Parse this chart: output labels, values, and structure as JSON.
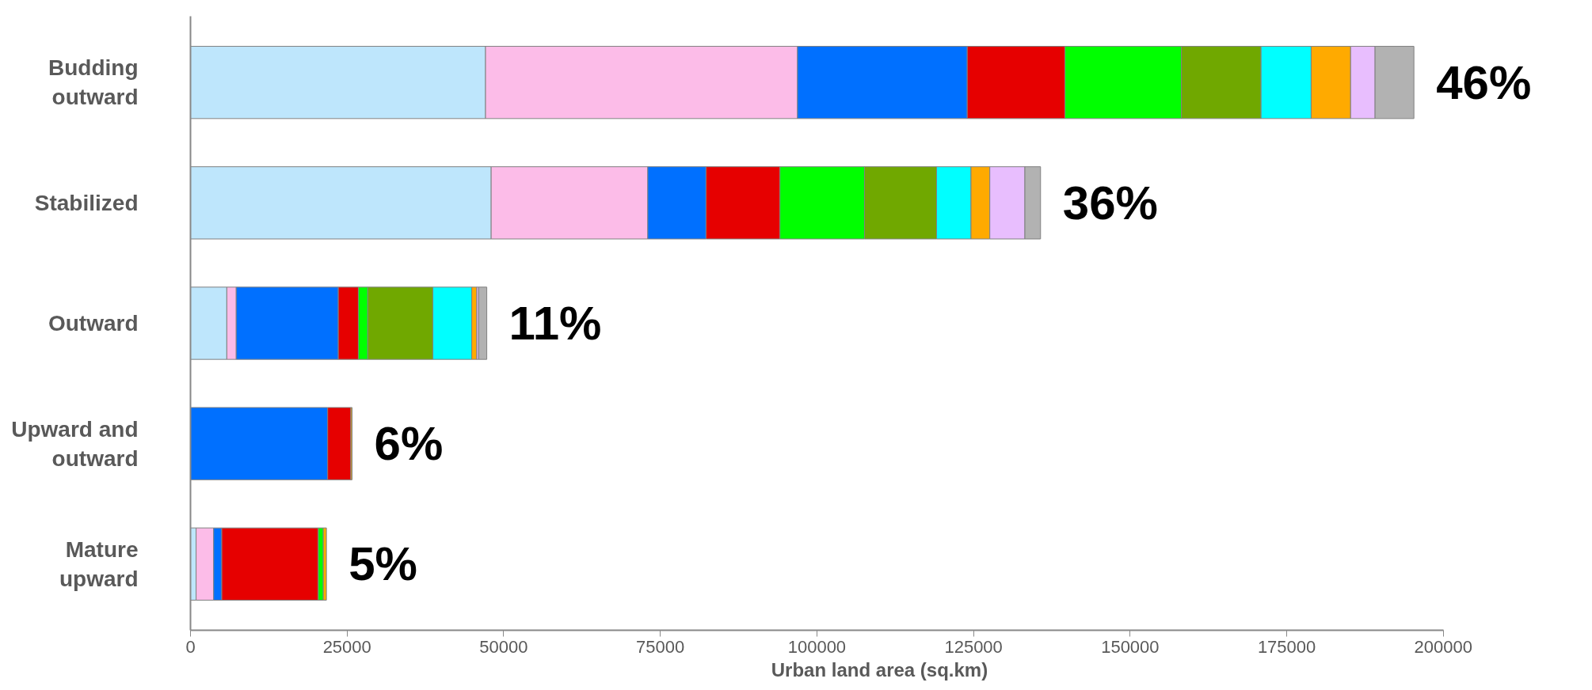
{
  "chart_data": {
    "type": "bar",
    "orientation": "horizontal",
    "stacked": true,
    "xlabel": "Urban land area (sq.km)",
    "categories": [
      "Budding outward",
      "Stabilized",
      "Outward",
      "Upward and outward",
      "Mature upward"
    ],
    "series": [
      {
        "color": "#bee6fc",
        "values": [
          47100,
          48000,
          5800,
          0,
          900
        ]
      },
      {
        "color": "#fcbce8",
        "values": [
          49800,
          25000,
          1500,
          0,
          2800
        ]
      },
      {
        "color": "#0070ff",
        "values": [
          27100,
          9300,
          16300,
          21900,
          1300
        ]
      },
      {
        "color": "#e60000",
        "values": [
          15600,
          11800,
          3200,
          3700,
          15400
        ]
      },
      {
        "color": "#00ff00",
        "values": [
          18600,
          13500,
          1500,
          0,
          800
        ]
      },
      {
        "color": "#70a800",
        "values": [
          12700,
          11500,
          10400,
          0,
          0
        ]
      },
      {
        "color": "#00ffff",
        "values": [
          8000,
          5500,
          6200,
          0,
          0
        ]
      },
      {
        "color": "#ffaa00",
        "values": [
          6300,
          3000,
          800,
          200,
          500
        ]
      },
      {
        "color": "#e8befe",
        "values": [
          3900,
          5600,
          300,
          0,
          0
        ]
      },
      {
        "color": "#b2b2b2",
        "values": [
          6200,
          2500,
          1300,
          0,
          0
        ]
      }
    ],
    "annotations": [
      {
        "text": "46%",
        "x": 195300,
        "y": "Budding outward"
      },
      {
        "text": "36%",
        "x": 135700,
        "y": "Stabilized"
      },
      {
        "text": "11%",
        "x": 47300,
        "y": "Outward"
      },
      {
        "text": "6%",
        "x": 25800,
        "y": "Upward and outward"
      },
      {
        "text": "5%",
        "x": 21700,
        "y": "Mature upward"
      }
    ],
    "xlim": [
      0,
      200000
    ],
    "xticks": [
      0,
      25000,
      50000,
      75000,
      100000,
      125000,
      150000,
      175000,
      200000
    ],
    "grid": false
  }
}
